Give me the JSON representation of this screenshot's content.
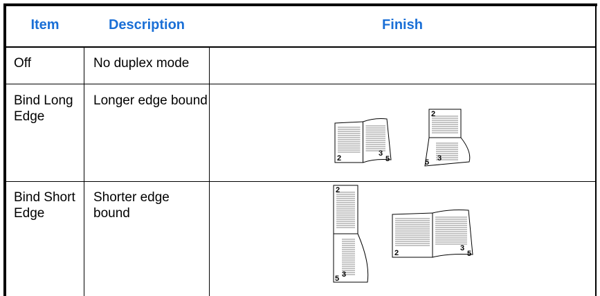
{
  "table": {
    "header": [
      "Item",
      "Description",
      "Finish"
    ],
    "rows": [
      {
        "item": "Off",
        "description": "No duplex mode"
      },
      {
        "item": "Bind Long Edge",
        "description": "Longer edge bound",
        "finish": [
          {
            "pages": [
              "2",
              "3",
              "5"
            ]
          },
          {
            "pages": [
              "2",
              "5",
              "3"
            ]
          }
        ]
      },
      {
        "item": "Bind Short Edge",
        "description": "Shorter edge bound",
        "finish": [
          {
            "pages": [
              "2",
              "5",
              "3"
            ]
          },
          {
            "pages": [
              "2",
              "3",
              "5"
            ]
          }
        ]
      }
    ]
  }
}
